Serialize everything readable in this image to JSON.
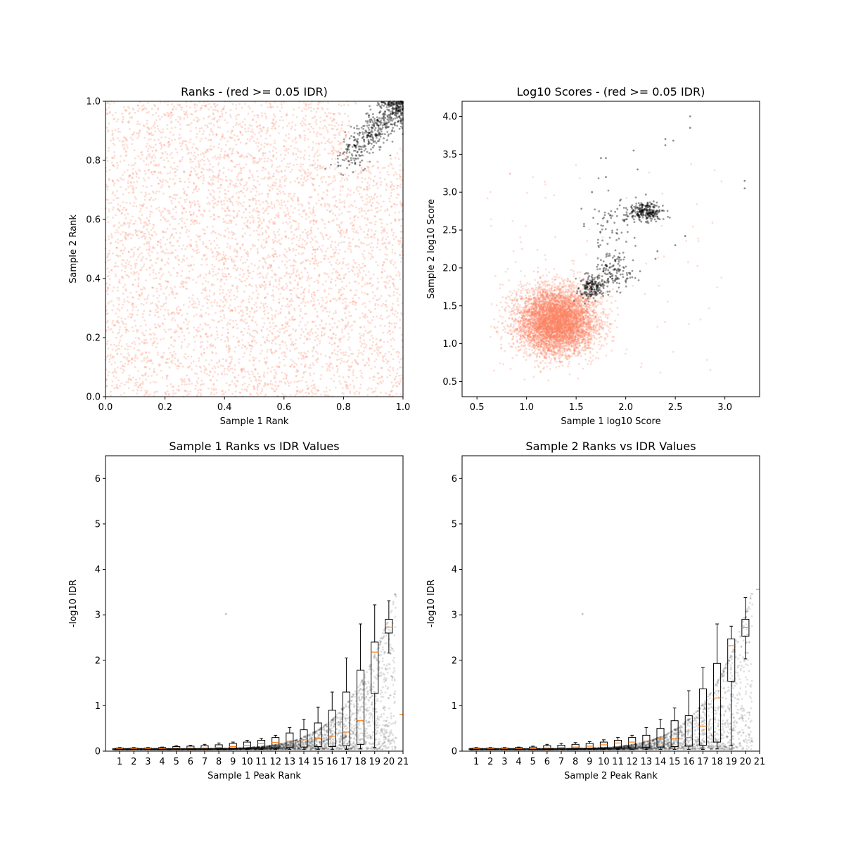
{
  "chart_data": [
    {
      "type": "scatter",
      "title": "Ranks - (red >= 0.05 IDR)",
      "xlabel": "Sample 1 Rank",
      "ylabel": "Sample 2 Rank",
      "xlim": [
        0,
        1
      ],
      "ylim": [
        0,
        1
      ],
      "xticks": [
        "0.0",
        "0.2",
        "0.4",
        "0.6",
        "0.8",
        "1.0"
      ],
      "yticks": [
        "0.0",
        "0.2",
        "0.4",
        "0.6",
        "0.8",
        "1.0"
      ],
      "grid": false,
      "colors": {
        "fail": "#fa8060",
        "pass": "#000000"
      },
      "series": [
        {
          "group": "fail",
          "distribution": "uniform over [0,1]x[0,1] excluding upper-right corner",
          "approx_count": 6000
        },
        {
          "group": "pass",
          "distribution": "cluster x 0.8-1.0, y 0.8-1.0 along diagonal",
          "approx_count": 500
        }
      ]
    },
    {
      "type": "scatter",
      "title": "Log10 Scores - (red >= 0.05 IDR)",
      "xlabel": "Sample 1 log10 Score",
      "ylabel": "Sample 2 log10 Score",
      "xlim": [
        0.35,
        3.35
      ],
      "ylim": [
        0.3,
        4.2
      ],
      "xticks": [
        "0.5",
        "1.0",
        "1.5",
        "2.0",
        "2.5",
        "3.0"
      ],
      "yticks": [
        "0.5",
        "1.0",
        "1.5",
        "2.0",
        "2.5",
        "3.0",
        "3.5",
        "4.0"
      ],
      "grid": false,
      "colors": {
        "fail": "#fa8060",
        "pass": "#000000"
      },
      "series": [
        {
          "group": "fail",
          "center": [
            1.3,
            1.3
          ],
          "approx_count": 6000
        },
        {
          "group": "pass",
          "clusters": [
            [
              1.65,
              1.75
            ],
            [
              1.85,
              1.95
            ],
            [
              2.2,
              2.75
            ]
          ],
          "approx_count": 600
        }
      ]
    },
    {
      "type": "box",
      "title": "Sample 1 Ranks vs IDR Values",
      "xlabel": "Sample 1 Peak Rank",
      "ylabel": "-log10 IDR",
      "xlim": [
        0,
        21
      ],
      "ylim": [
        0,
        6.5
      ],
      "xticks": [
        "1",
        "2",
        "3",
        "4",
        "5",
        "6",
        "7",
        "8",
        "9",
        "10",
        "11",
        "12",
        "13",
        "14",
        "15",
        "16",
        "17",
        "18",
        "19",
        "20",
        "21"
      ],
      "yticks": [
        "0",
        "1",
        "2",
        "3",
        "4",
        "5",
        "6"
      ],
      "grid": false,
      "colors": {
        "points": "#000000",
        "median": "#ff7f0e",
        "box": "#000000"
      },
      "boxes": [
        {
          "x": 1,
          "wlo": 0.04,
          "q1": 0.05,
          "median": 0.06,
          "q3": 0.07,
          "whi": 0.08
        },
        {
          "x": 2,
          "wlo": 0.04,
          "q1": 0.05,
          "median": 0.06,
          "q3": 0.07,
          "whi": 0.08
        },
        {
          "x": 3,
          "wlo": 0.04,
          "q1": 0.05,
          "median": 0.06,
          "q3": 0.07,
          "whi": 0.08
        },
        {
          "x": 4,
          "wlo": 0.04,
          "q1": 0.05,
          "median": 0.06,
          "q3": 0.08,
          "whi": 0.09
        },
        {
          "x": 5,
          "wlo": 0.04,
          "q1": 0.05,
          "median": 0.07,
          "q3": 0.1,
          "whi": 0.12
        },
        {
          "x": 6,
          "wlo": 0.04,
          "q1": 0.05,
          "median": 0.07,
          "q3": 0.11,
          "whi": 0.13
        },
        {
          "x": 7,
          "wlo": 0.04,
          "q1": 0.05,
          "median": 0.07,
          "q3": 0.12,
          "whi": 0.15
        },
        {
          "x": 8,
          "wlo": 0.04,
          "q1": 0.06,
          "median": 0.08,
          "q3": 0.14,
          "whi": 0.18
        },
        {
          "x": 9,
          "wlo": 0.04,
          "q1": 0.06,
          "median": 0.1,
          "q3": 0.17,
          "whi": 0.2
        },
        {
          "x": 10,
          "wlo": 0.04,
          "q1": 0.06,
          "median": 0.13,
          "q3": 0.2,
          "whi": 0.24
        },
        {
          "x": 11,
          "wlo": 0.04,
          "q1": 0.07,
          "median": 0.17,
          "q3": 0.24,
          "whi": 0.28
        },
        {
          "x": 12,
          "wlo": 0.04,
          "q1": 0.07,
          "median": 0.19,
          "q3": 0.3,
          "whi": 0.35
        },
        {
          "x": 13,
          "wlo": 0.04,
          "q1": 0.08,
          "median": 0.22,
          "q3": 0.4,
          "whi": 0.52
        },
        {
          "x": 14,
          "wlo": 0.04,
          "q1": 0.09,
          "median": 0.25,
          "q3": 0.47,
          "whi": 0.7
        },
        {
          "x": 15,
          "wlo": 0.04,
          "q1": 0.1,
          "median": 0.28,
          "q3": 0.62,
          "whi": 0.97
        },
        {
          "x": 16,
          "wlo": 0.04,
          "q1": 0.1,
          "median": 0.33,
          "q3": 0.9,
          "whi": 1.3
        },
        {
          "x": 17,
          "wlo": 0.04,
          "q1": 0.12,
          "median": 0.42,
          "q3": 1.3,
          "whi": 2.05
        },
        {
          "x": 18,
          "wlo": 0.05,
          "q1": 0.15,
          "median": 0.67,
          "q3": 1.78,
          "whi": 2.8
        },
        {
          "x": 19,
          "wlo": 0.08,
          "q1": 1.27,
          "median": 2.18,
          "q3": 2.4,
          "whi": 3.22
        },
        {
          "x": 20,
          "wlo": 2.16,
          "q1": 2.6,
          "median": 2.73,
          "q3": 2.9,
          "whi": 3.31
        },
        {
          "x": 21,
          "wlo": 0.81,
          "q1": 0.81,
          "median": 0.81,
          "q3": 0.81,
          "whi": 0.81
        }
      ]
    },
    {
      "type": "box",
      "title": "Sample 2 Ranks vs IDR Values",
      "xlabel": "Sample 2 Peak Rank",
      "ylabel": "-log10 IDR",
      "xlim": [
        0,
        21
      ],
      "ylim": [
        0,
        6.5
      ],
      "xticks": [
        "1",
        "2",
        "3",
        "4",
        "5",
        "6",
        "7",
        "8",
        "9",
        "10",
        "11",
        "12",
        "13",
        "14",
        "15",
        "16",
        "17",
        "18",
        "19",
        "20",
        "21"
      ],
      "yticks": [
        "0",
        "1",
        "2",
        "3",
        "4",
        "5",
        "6"
      ],
      "grid": false,
      "colors": {
        "points": "#000000",
        "median": "#ff7f0e",
        "box": "#000000"
      },
      "boxes": [
        {
          "x": 1,
          "wlo": 0.04,
          "q1": 0.05,
          "median": 0.06,
          "q3": 0.07,
          "whi": 0.08
        },
        {
          "x": 2,
          "wlo": 0.04,
          "q1": 0.05,
          "median": 0.06,
          "q3": 0.07,
          "whi": 0.08
        },
        {
          "x": 3,
          "wlo": 0.04,
          "q1": 0.05,
          "median": 0.06,
          "q3": 0.07,
          "whi": 0.08
        },
        {
          "x": 4,
          "wlo": 0.04,
          "q1": 0.05,
          "median": 0.06,
          "q3": 0.08,
          "whi": 0.09
        },
        {
          "x": 5,
          "wlo": 0.04,
          "q1": 0.05,
          "median": 0.06,
          "q3": 0.09,
          "whi": 0.11
        },
        {
          "x": 6,
          "wlo": 0.04,
          "q1": 0.05,
          "median": 0.07,
          "q3": 0.12,
          "whi": 0.15
        },
        {
          "x": 7,
          "wlo": 0.04,
          "q1": 0.05,
          "median": 0.08,
          "q3": 0.13,
          "whi": 0.17
        },
        {
          "x": 8,
          "wlo": 0.04,
          "q1": 0.06,
          "median": 0.09,
          "q3": 0.15,
          "whi": 0.19
        },
        {
          "x": 9,
          "wlo": 0.04,
          "q1": 0.06,
          "median": 0.11,
          "q3": 0.17,
          "whi": 0.21
        },
        {
          "x": 10,
          "wlo": 0.04,
          "q1": 0.06,
          "median": 0.14,
          "q3": 0.2,
          "whi": 0.25
        },
        {
          "x": 11,
          "wlo": 0.04,
          "q1": 0.07,
          "median": 0.18,
          "q3": 0.24,
          "whi": 0.3
        },
        {
          "x": 12,
          "wlo": 0.04,
          "q1": 0.07,
          "median": 0.2,
          "q3": 0.3,
          "whi": 0.35
        },
        {
          "x": 13,
          "wlo": 0.04,
          "q1": 0.08,
          "median": 0.22,
          "q3": 0.35,
          "whi": 0.52
        },
        {
          "x": 14,
          "wlo": 0.04,
          "q1": 0.09,
          "median": 0.27,
          "q3": 0.5,
          "whi": 0.7
        },
        {
          "x": 15,
          "wlo": 0.04,
          "q1": 0.1,
          "median": 0.28,
          "q3": 0.67,
          "whi": 0.95
        },
        {
          "x": 16,
          "wlo": 0.04,
          "q1": 0.11,
          "median": 0.3,
          "q3": 0.78,
          "whi": 1.33
        },
        {
          "x": 17,
          "wlo": 0.04,
          "q1": 0.13,
          "median": 0.55,
          "q3": 1.37,
          "whi": 1.84
        },
        {
          "x": 18,
          "wlo": 0.05,
          "q1": 0.2,
          "median": 1.17,
          "q3": 1.93,
          "whi": 2.8
        },
        {
          "x": 19,
          "wlo": 0.12,
          "q1": 1.54,
          "median": 2.32,
          "q3": 2.47,
          "whi": 2.75
        },
        {
          "x": 20,
          "wlo": 2.03,
          "q1": 2.53,
          "median": 2.72,
          "q3": 2.9,
          "whi": 3.38
        },
        {
          "x": 21,
          "wlo": 3.56,
          "q1": 3.56,
          "median": 3.56,
          "q3": 3.56,
          "whi": 3.56
        }
      ]
    }
  ]
}
